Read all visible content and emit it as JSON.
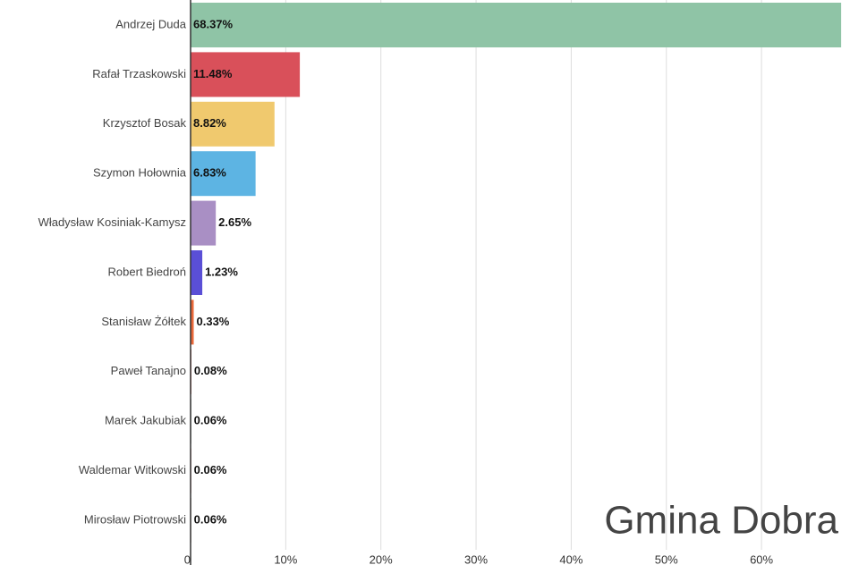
{
  "chart_data": {
    "type": "bar",
    "orientation": "horizontal",
    "annotation": "Gmina Dobra",
    "categories": [
      "Andrzej Duda",
      "Rafał Trzaskowski",
      "Krzysztof Bosak",
      "Szymon Hołownia",
      "Władysław Kosiniak-Kamysz",
      "Robert Biedroń",
      "Stanisław Żółtek",
      "Paweł Tanajno",
      "Marek Jakubiak",
      "Waldemar Witkowski",
      "Mirosław Piotrowski"
    ],
    "values": [
      68.37,
      11.48,
      8.82,
      6.83,
      2.65,
      1.23,
      0.33,
      0.08,
      0.06,
      0.06,
      0.06
    ],
    "value_labels": [
      "68.37%",
      "11.48%",
      "8.82%",
      "6.83%",
      "2.65%",
      "1.23%",
      "0.33%",
      "0.08%",
      "0.06%",
      "0.06%",
      "0.06%"
    ],
    "colors": [
      "#8fc4a6",
      "#d9505a",
      "#f0c96e",
      "#5db4e3",
      "#a98fc4",
      "#5a4fd6",
      "#e8683a",
      "#c44a3a",
      "#4a6a5a",
      "#c0392b",
      "#8a6a4a"
    ],
    "xlim": [
      0,
      69.3
    ],
    "xticks": [
      0,
      {
        "value": 10,
        "label": "10%"
      },
      {
        "value": 20,
        "label": "20%"
      },
      {
        "value": 30,
        "label": "30%"
      },
      {
        "value": 40,
        "label": "40%"
      },
      {
        "value": 50,
        "label": "50%"
      },
      {
        "value": 60,
        "label": "60%"
      }
    ],
    "grid": true
  }
}
